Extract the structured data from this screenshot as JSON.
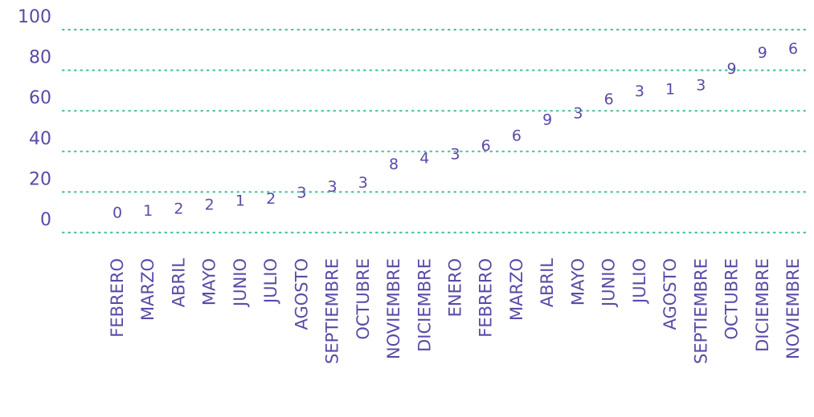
{
  "chart_data": {
    "type": "scatter",
    "title": "",
    "xlabel": "",
    "ylabel": "",
    "ylim": [
      0,
      100
    ],
    "yticks": [
      0,
      20,
      40,
      60,
      80,
      100
    ],
    "grid": true,
    "colors": {
      "text": "#5b4aa6",
      "grid": "#4fc3a1"
    },
    "categories": [
      "FEBRERO",
      "MARZO",
      "ABRIL",
      "MAYO",
      "JUNIO",
      "JULIO",
      "AGOSTO",
      "SEPTIEMBRE",
      "OCTUBRE",
      "NOVIEMBRE",
      "DICIEMBRE",
      "ENERO",
      "FEBRERO",
      "MARZO",
      "ABRIL",
      "MAYO",
      "JUNIO",
      "JULIO",
      "AGOSTO",
      "SEPTIEMBRE",
      "OCTUBRE",
      "DICIEMBRE",
      "NOVIEMBRE"
    ],
    "values": [
      10,
      11,
      12,
      14,
      16,
      17,
      20,
      23,
      25,
      34,
      37,
      39,
      43,
      48,
      56,
      59,
      66,
      70,
      71,
      73,
      81,
      89,
      91
    ],
    "data_labels": [
      "0",
      "1",
      "2",
      "2",
      "1",
      "2",
      "3",
      "3",
      "3",
      "8",
      "4",
      "3",
      "6",
      "6",
      "9",
      "3",
      "6",
      "3",
      "1",
      "3",
      "9",
      "9",
      "6"
    ]
  }
}
